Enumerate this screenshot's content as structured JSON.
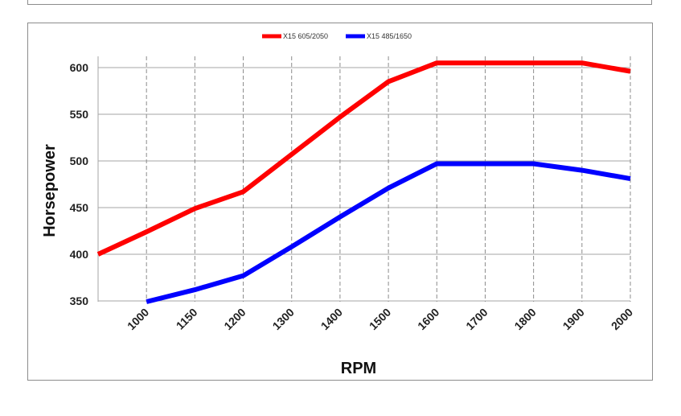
{
  "chart_data": {
    "type": "line",
    "title": "",
    "xlabel": "RPM",
    "ylabel": "Horsepower",
    "categories": [
      "1000",
      "1150",
      "1200",
      "1300",
      "1400",
      "1500",
      "1600",
      "1700",
      "1800",
      "1900",
      "2000"
    ],
    "x": [
      1000,
      1100,
      1150,
      1200,
      1300,
      1400,
      1500,
      1600,
      1700,
      1800,
      1900,
      2000
    ],
    "series": [
      {
        "name": "X15 605/2050",
        "color": "#ff0000",
        "values": [
          400,
          424,
          449,
          467,
          507,
          547,
          585,
          605,
          605,
          605,
          605,
          596
        ]
      },
      {
        "name": "X15 485/1650",
        "color": "#0000ff",
        "values": [
          null,
          345,
          362,
          377,
          408,
          440,
          471,
          497,
          497,
          497,
          490,
          481
        ]
      }
    ],
    "yticks": [
      350,
      400,
      450,
      500,
      550,
      600
    ],
    "ylim": [
      350,
      610
    ],
    "grid": {
      "horizontal": true,
      "vertical": "dashed"
    },
    "legend": "top-center"
  }
}
